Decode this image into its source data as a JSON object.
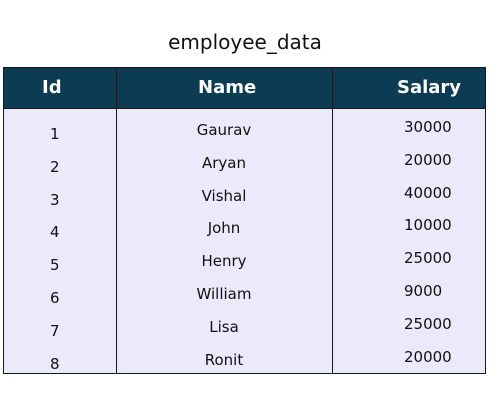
{
  "title": "employee_data",
  "columns": [
    "Id",
    "Name",
    "Salary"
  ],
  "rows": [
    {
      "id": "1",
      "name": "Gaurav",
      "salary": "30000"
    },
    {
      "id": "2",
      "name": "Aryan",
      "salary": "20000"
    },
    {
      "id": "3",
      "name": "Vishal",
      "salary": "40000"
    },
    {
      "id": "4",
      "name": "John",
      "salary": "10000"
    },
    {
      "id": "5",
      "name": "Henry",
      "salary": "25000"
    },
    {
      "id": "6",
      "name": "William",
      "salary": "9000"
    },
    {
      "id": "7",
      "name": "Lisa",
      "salary": "25000"
    },
    {
      "id": "8",
      "name": "Ronit",
      "salary": "20000"
    }
  ],
  "colors": {
    "header_bg": "#0b3c53",
    "header_text": "#ffffff",
    "body_bg": "#eaeafb",
    "border": "#1a1a1a"
  }
}
